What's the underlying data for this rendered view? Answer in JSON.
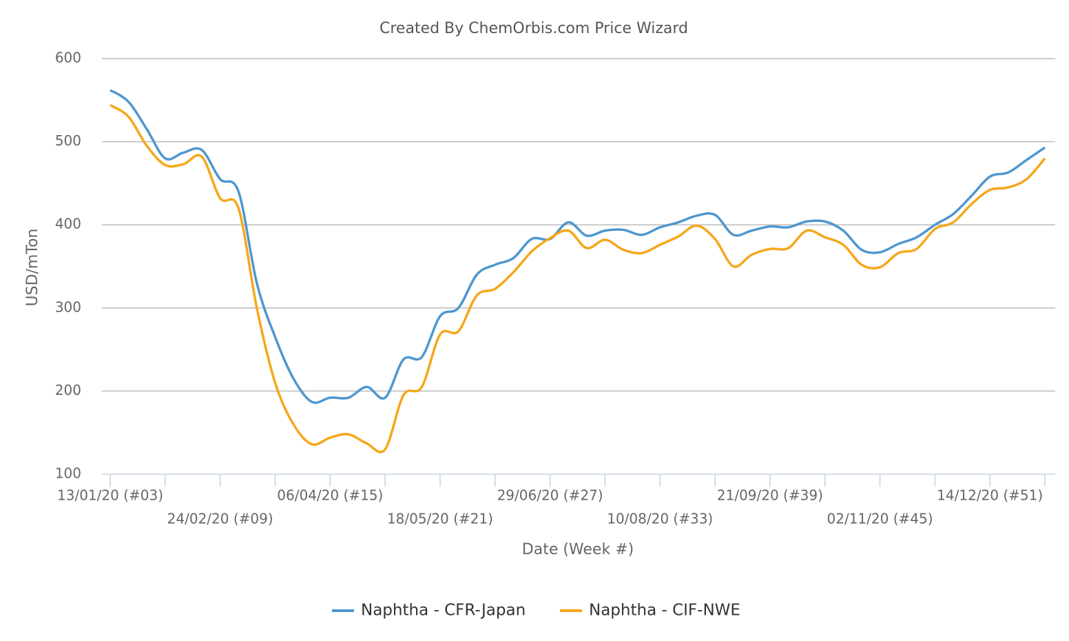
{
  "chart_data": {
    "type": "line",
    "title": "Created By ChemOrbis.com Price Wizard",
    "x_label": "Date (Week #)",
    "y_label": "USD/mTon",
    "categories": [
      "13/01/20 (#03)",
      null,
      null,
      null,
      null,
      null,
      "24/02/20 (#09)",
      null,
      null,
      null,
      null,
      null,
      "06/04/20 (#15)",
      null,
      null,
      null,
      null,
      null,
      "18/05/20 (#21)",
      null,
      null,
      null,
      null,
      null,
      "29/06/20 (#27)",
      null,
      null,
      null,
      null,
      null,
      "10/08/20 (#33)",
      null,
      null,
      null,
      null,
      null,
      "21/09/20 (#39)",
      null,
      null,
      null,
      null,
      null,
      "02/11/20 (#45)",
      null,
      null,
      null,
      null,
      null,
      "14/12/20 (#51)",
      null,
      null,
      null
    ],
    "series": [
      {
        "name": "Naphtha - CFR-Japan",
        "color": "#4e97cf",
        "values": [
          562,
          548,
          515,
          480,
          487,
          490,
          455,
          440,
          330,
          265,
          215,
          187,
          192,
          192,
          205,
          192,
          238,
          241,
          290,
          300,
          340,
          352,
          360,
          383,
          383,
          403,
          387,
          393,
          394,
          388,
          397,
          403,
          411,
          412,
          388,
          393,
          398,
          397,
          404,
          404,
          393,
          370,
          367,
          377,
          385,
          400,
          413,
          435,
          458,
          463,
          478,
          493
        ]
      },
      {
        "name": "Naphtha - CIF-NWE",
        "color": "#f5a71a",
        "values": [
          544,
          530,
          495,
          472,
          473,
          482,
          432,
          420,
          300,
          210,
          160,
          136,
          144,
          148,
          137,
          130,
          195,
          205,
          268,
          272,
          315,
          323,
          343,
          368,
          384,
          393,
          372,
          382,
          370,
          366,
          376,
          386,
          399,
          383,
          350,
          364,
          371,
          372,
          393,
          385,
          376,
          352,
          349,
          366,
          371,
          395,
          403,
          425,
          442,
          445,
          455,
          480
        ]
      }
    ],
    "ylim": [
      100,
      600
    ],
    "yticks": [
      100,
      200,
      300,
      400,
      500,
      600
    ],
    "grid": true,
    "legend": "bottom"
  }
}
